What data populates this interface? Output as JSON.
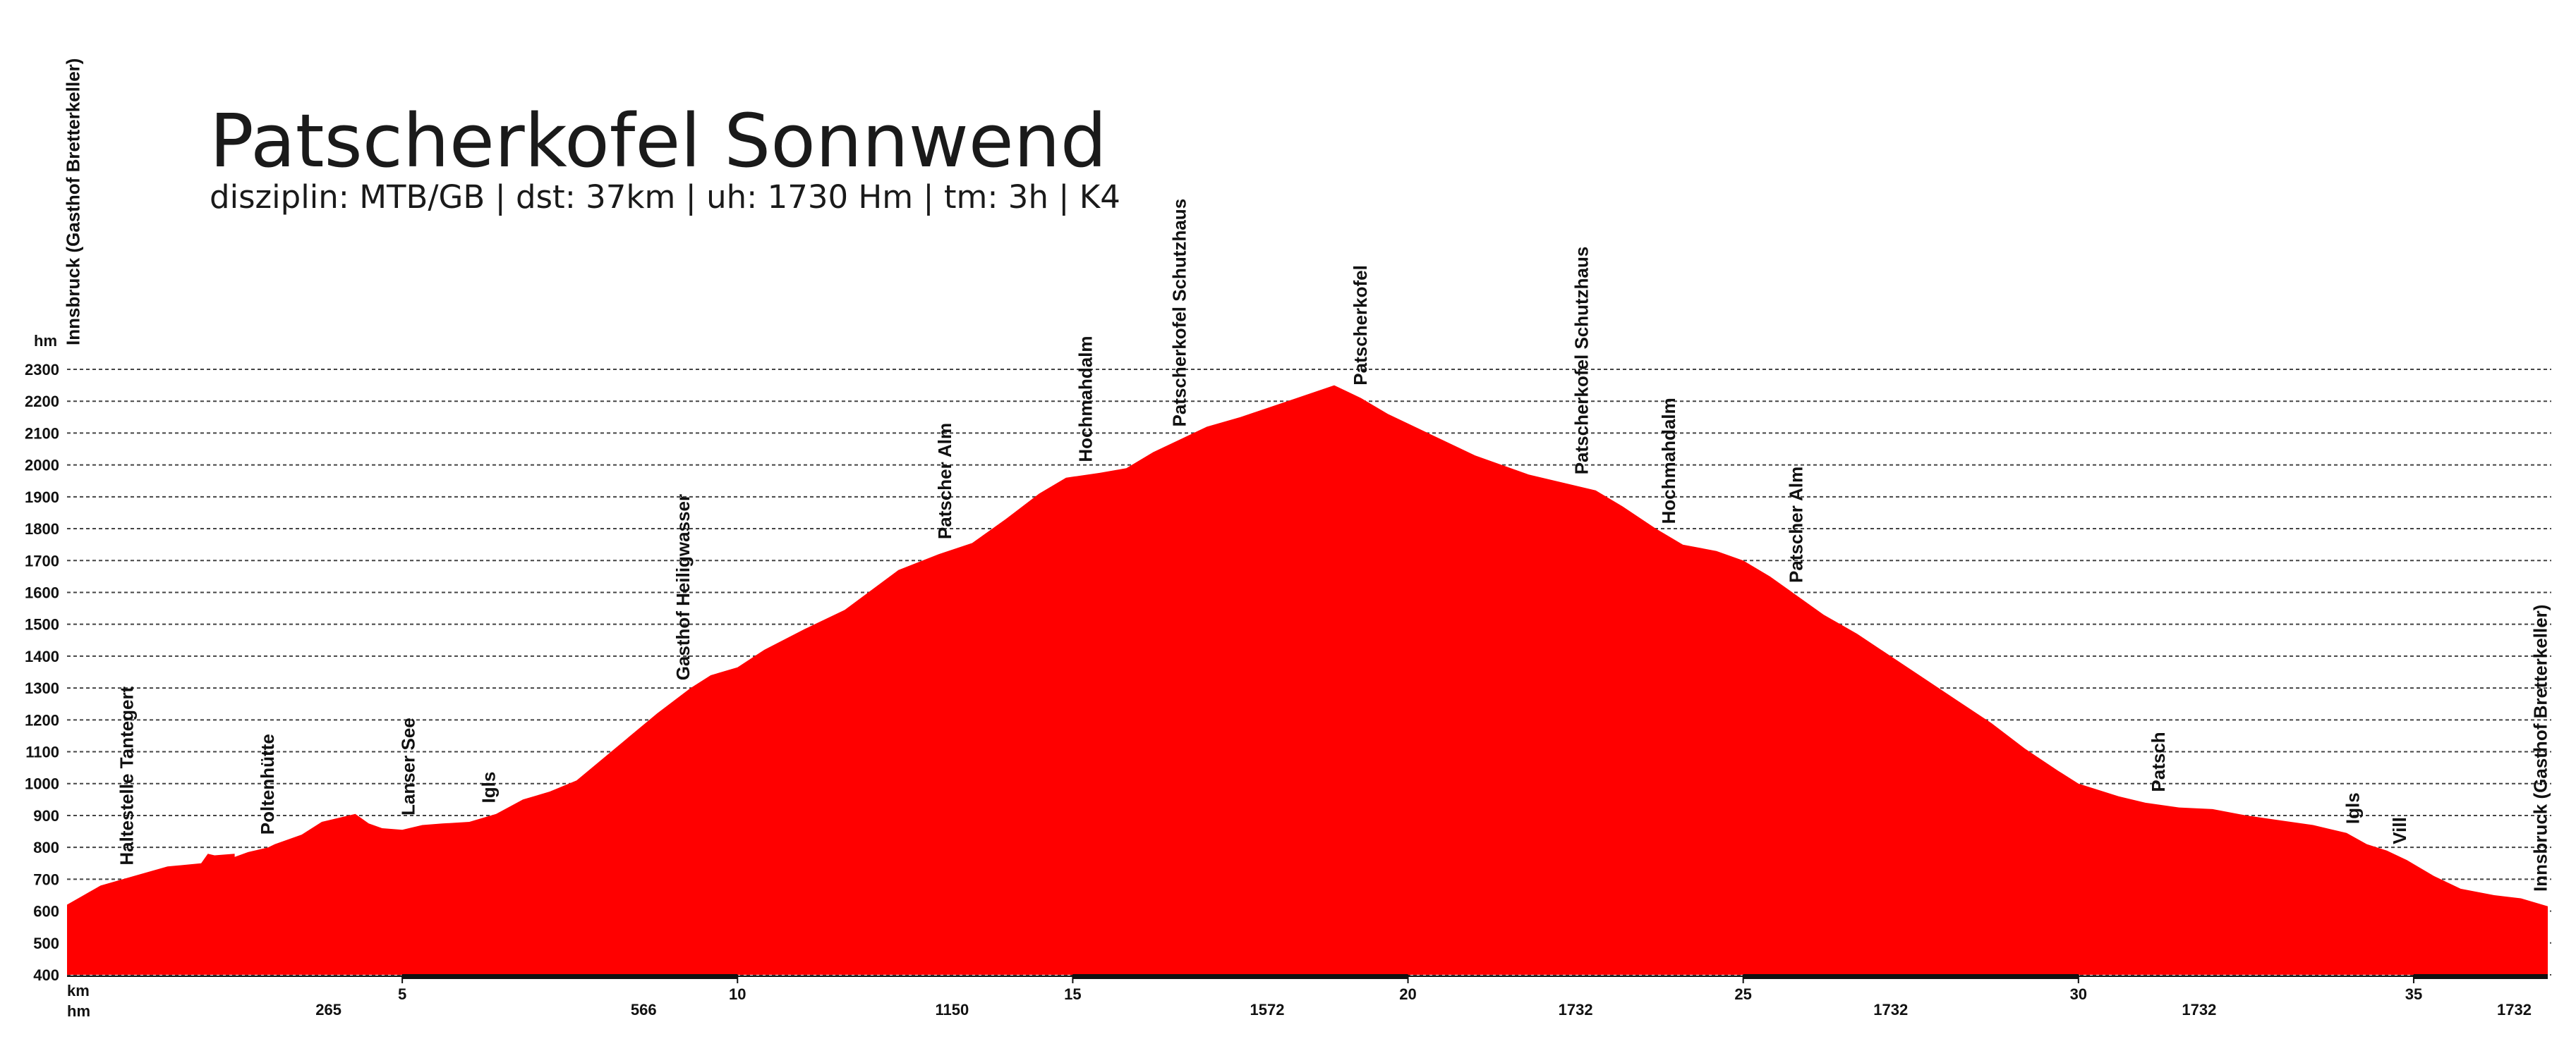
{
  "chart_data": {
    "type": "area",
    "title": "Patscherkofel Sonnwend",
    "subtitle": "disziplin: MTB/GB | dst: 37km | uh: 1730 Hm | tm: 3h | K4",
    "x_unit_label": "km",
    "y_unit_label": "hm",
    "cumulative_label": "hm",
    "xlim": [
      0,
      37
    ],
    "ylim": [
      400,
      2300
    ],
    "y_ticks": [
      400,
      500,
      600,
      700,
      800,
      900,
      1000,
      1100,
      1200,
      1300,
      1400,
      1500,
      1600,
      1700,
      1800,
      1900,
      2000,
      2100,
      2200,
      2300
    ],
    "y_tick_labels": [
      "400",
      "500",
      "600",
      "700",
      "800",
      "900",
      "1000",
      "1100",
      "1200",
      "1300",
      "1400",
      "1500",
      "1600",
      "1700",
      "1800",
      "1900",
      "2000",
      "2100",
      "2200",
      "2300"
    ],
    "x_ticks": [
      5,
      10,
      15,
      20,
      25,
      30,
      35
    ],
    "x_tick_labels": [
      "5",
      "10",
      "15",
      "20",
      "25",
      "30",
      "35"
    ],
    "cumulative_ascent": [
      {
        "km": 3.9,
        "label": "265"
      },
      {
        "km": 8.6,
        "label": "566"
      },
      {
        "km": 13.2,
        "label": "1150"
      },
      {
        "km": 17.9,
        "label": "1572"
      },
      {
        "km": 22.5,
        "label": "1732"
      },
      {
        "km": 27.2,
        "label": "1732"
      },
      {
        "km": 31.8,
        "label": "1732"
      },
      {
        "km": 36.5,
        "label": "1732"
      }
    ],
    "fill_color": "#ff0000",
    "grid": true,
    "series": [
      {
        "x": [
          0,
          0.5,
          1,
          1.5,
          2,
          2.5,
          2.1,
          2.2,
          2.5,
          2.7,
          3,
          3.1,
          3.3,
          3.5,
          3.8,
          4.3,
          4.5,
          4.7,
          5.0,
          5.3,
          5.6,
          6.0,
          6.4,
          6.8,
          7.2,
          7.6,
          8.0,
          8.4,
          8.8,
          9.3,
          9.6,
          10.0,
          10.4,
          11.0,
          11.6,
          12.4,
          13.0,
          13.5,
          14.0,
          14.5,
          14.9,
          15.4,
          15.8,
          16.2,
          16.6,
          17.0,
          17.5,
          18.2,
          18.9,
          19.3,
          19.7,
          20.2,
          21.0,
          21.8,
          22.3,
          22.8,
          23.2,
          23.7,
          24.1,
          24.6,
          25.0,
          25.4,
          25.8,
          26.2,
          26.7,
          27.2,
          27.7,
          28.2,
          28.7,
          29.2,
          29.7,
          30.0,
          30.3,
          30.6,
          31.0,
          31.5,
          32.0,
          32.5,
          33.0,
          33.5,
          34.0,
          34.3,
          34.6,
          34.9,
          35.3,
          35.7,
          36.2,
          36.6,
          37.0
        ],
        "y": [
          620,
          680,
          710,
          740,
          750,
          780,
          780,
          775,
          770,
          785,
          800,
          810,
          825,
          840,
          880,
          905,
          875,
          860,
          855,
          870,
          875,
          880,
          905,
          950,
          975,
          1010,
          1080,
          1150,
          1220,
          1300,
          1340,
          1365,
          1420,
          1485,
          1545,
          1670,
          1720,
          1755,
          1830,
          1910,
          1960,
          1975,
          1990,
          2040,
          2080,
          2120,
          2150,
          2200,
          2250,
          2210,
          2160,
          2110,
          2030,
          1970,
          1945,
          1920,
          1870,
          1800,
          1750,
          1730,
          1700,
          1650,
          1590,
          1530,
          1470,
          1400,
          1330,
          1260,
          1190,
          1110,
          1040,
          1000,
          980,
          960,
          940,
          925,
          920,
          900,
          885,
          870,
          845,
          810,
          790,
          760,
          710,
          670,
          650,
          640,
          615
        ]
      }
    ],
    "waypoints": [
      {
        "km": 0.1,
        "label": "Innsbruck (Gasthof Bretterkeller)",
        "anchor": "top"
      },
      {
        "km": 0.9,
        "label": "Haltestelle Tantegert",
        "anchor": "curve"
      },
      {
        "km": 3.0,
        "label": "Poltenhütte",
        "anchor": "curve"
      },
      {
        "km": 5.1,
        "label": "Lanser See",
        "anchor": "curve"
      },
      {
        "km": 6.3,
        "label": "Igls",
        "anchor": "curve"
      },
      {
        "km": 9.2,
        "label": "Gasthof Heiligwasser",
        "anchor": "curve"
      },
      {
        "km": 13.1,
        "label": "Patscher Alm",
        "anchor": "curve"
      },
      {
        "km": 15.2,
        "label": "Hochmahdalm",
        "anchor": "curve"
      },
      {
        "km": 16.6,
        "label": "Patscherkofel Schutzhaus",
        "anchor": "curve"
      },
      {
        "km": 19.3,
        "label": "Patscherkofel",
        "anchor": "curve"
      },
      {
        "km": 22.6,
        "label": "Patscherkofel Schutzhaus",
        "anchor": "curve"
      },
      {
        "km": 23.9,
        "label": "Hochmahdalm",
        "anchor": "curve"
      },
      {
        "km": 25.8,
        "label": "Patscher Alm",
        "anchor": "curve"
      },
      {
        "km": 31.2,
        "label": "Patsch",
        "anchor": "curve"
      },
      {
        "km": 34.1,
        "label": "Igls",
        "anchor": "curve"
      },
      {
        "km": 34.8,
        "label": "Vill",
        "anchor": "curve"
      },
      {
        "km": 36.9,
        "label": "Innsbruck (Gasthof Bretterkeller)",
        "anchor": "curve"
      }
    ]
  }
}
